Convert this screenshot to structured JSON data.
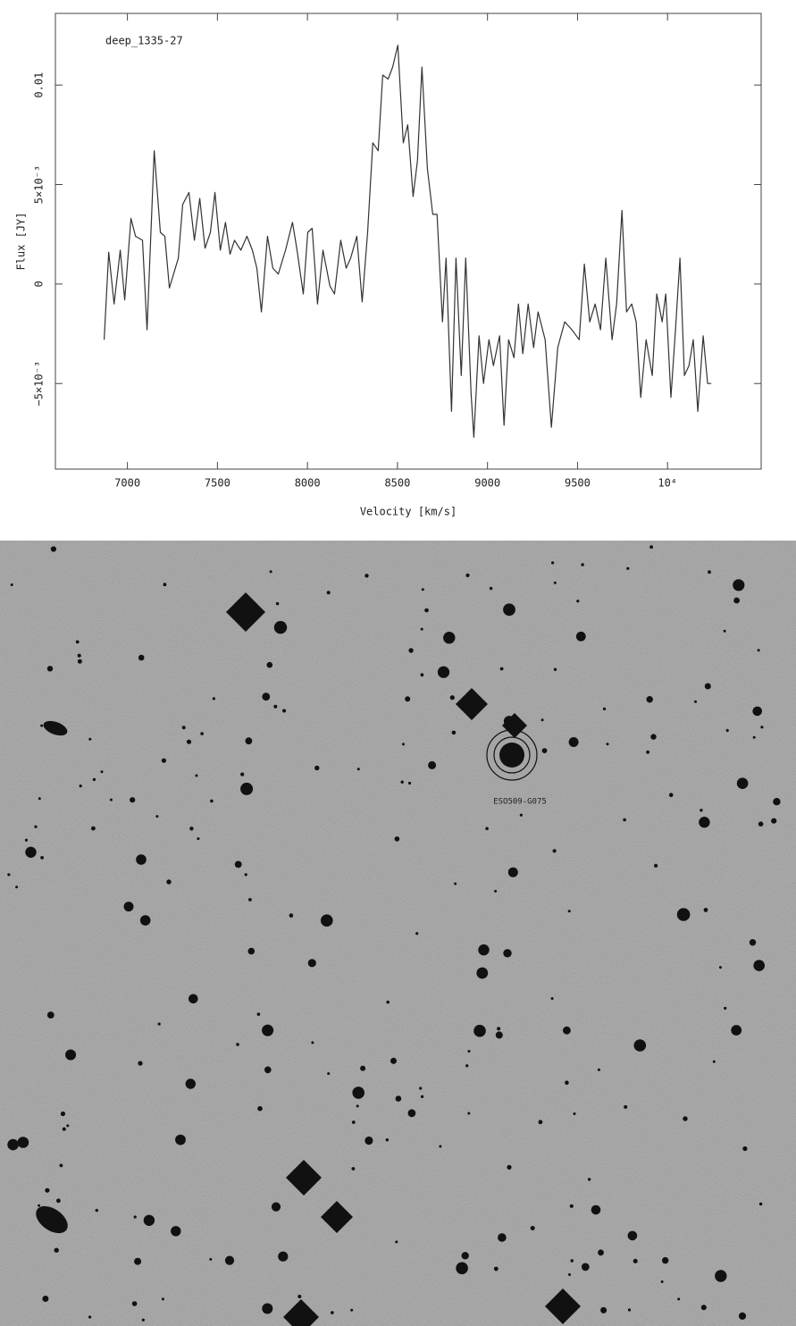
{
  "chart_data": {
    "type": "line",
    "annotation": "deep_1335-27",
    "x_label": "Velocity [km/s]",
    "y_label": "Flux [JY]",
    "x": [
      6871,
      6896,
      6926,
      6960,
      6985,
      7020,
      7045,
      7084,
      7109,
      7149,
      7183,
      7208,
      7233,
      7283,
      7307,
      7342,
      7372,
      7402,
      7431,
      7461,
      7486,
      7516,
      7545,
      7570,
      7595,
      7630,
      7664,
      7694,
      7719,
      7744,
      7778,
      7808,
      7838,
      7878,
      7917,
      7942,
      7977,
      8002,
      8026,
      8056,
      8086,
      8125,
      8150,
      8185,
      8215,
      8240,
      8274,
      8304,
      8334,
      8363,
      8393,
      8418,
      8448,
      8473,
      8502,
      8532,
      8557,
      8587,
      8611,
      8636,
      8666,
      8696,
      8720,
      8750,
      8770,
      8800,
      8825,
      8854,
      8879,
      8909,
      8924,
      8953,
      8978,
      9008,
      9033,
      9067,
      9092,
      9117,
      9147,
      9172,
      9196,
      9226,
      9256,
      9281,
      9320,
      9355,
      9390,
      9429,
      9469,
      9509,
      9538,
      9568,
      9598,
      9628,
      9657,
      9692,
      9717,
      9747,
      9772,
      9801,
      9826,
      9851,
      9881,
      9915,
      9940,
      9970,
      9990,
      10019,
      10044,
      10069,
      10094,
      10119,
      10143,
      10168,
      10198,
      10223,
      10243
    ],
    "series": [
      {
        "name": "deep_1335-27",
        "color": "#333333",
        "values": [
          -0.0028,
          0.0016,
          -0.001,
          0.0017,
          -0.0008,
          0.0033,
          0.0024,
          0.0022,
          -0.0023,
          0.0067,
          0.0026,
          0.0024,
          -0.0002,
          0.0013,
          0.004,
          0.0046,
          0.0022,
          0.0043,
          0.0018,
          0.0026,
          0.0046,
          0.0017,
          0.0031,
          0.0015,
          0.0022,
          0.0017,
          0.0024,
          0.0017,
          0.0008,
          -0.0014,
          0.0024,
          0.0008,
          0.0005,
          0.0017,
          0.0031,
          0.0017,
          -0.0005,
          0.0026,
          0.0028,
          -0.001,
          0.0017,
          -0.0001,
          -0.0005,
          0.0022,
          0.0008,
          0.0013,
          0.0024,
          -0.0009,
          0.0026,
          0.0071,
          0.0067,
          0.0105,
          0.0103,
          0.0109,
          0.012,
          0.0071,
          0.008,
          0.0044,
          0.0062,
          0.0109,
          0.0058,
          0.0035,
          0.0035,
          -0.0019,
          0.0013,
          -0.0064,
          0.0013,
          -0.0046,
          0.0013,
          -0.0055,
          -0.0077,
          -0.0026,
          -0.005,
          -0.0028,
          -0.0041,
          -0.0026,
          -0.0071,
          -0.0028,
          -0.0037,
          -0.001,
          -0.0035,
          -0.001,
          -0.0032,
          -0.0014,
          -0.0028,
          -0.0072,
          -0.0032,
          -0.0019,
          -0.0023,
          -0.0028,
          0.001,
          -0.0019,
          -0.001,
          -0.0023,
          0.0013,
          -0.0028,
          -0.001,
          0.0037,
          -0.0014,
          -0.001,
          -0.0019,
          -0.0057,
          -0.0028,
          -0.0046,
          -0.0005,
          -0.0019,
          -0.0005,
          -0.0057,
          -0.0023,
          0.0013,
          -0.0046,
          -0.0041,
          -0.0028,
          -0.0064,
          -0.0026,
          -0.005,
          -0.005
        ]
      }
    ],
    "xlim": [
      6600,
      10520
    ],
    "ylim": [
      -0.0093,
      0.0136
    ],
    "xticks": [
      7000,
      7500,
      8000,
      8500,
      9000,
      9500,
      {
        "value": 10000,
        "label": "10⁴"
      }
    ],
    "yticks": [
      {
        "value": -0.005,
        "label": "−5×10⁻³"
      },
      0,
      {
        "value": 0.005,
        "label": "5×10⁻³"
      },
      0.01
    ]
  },
  "image": {
    "target_label": "ESO509-G075"
  }
}
